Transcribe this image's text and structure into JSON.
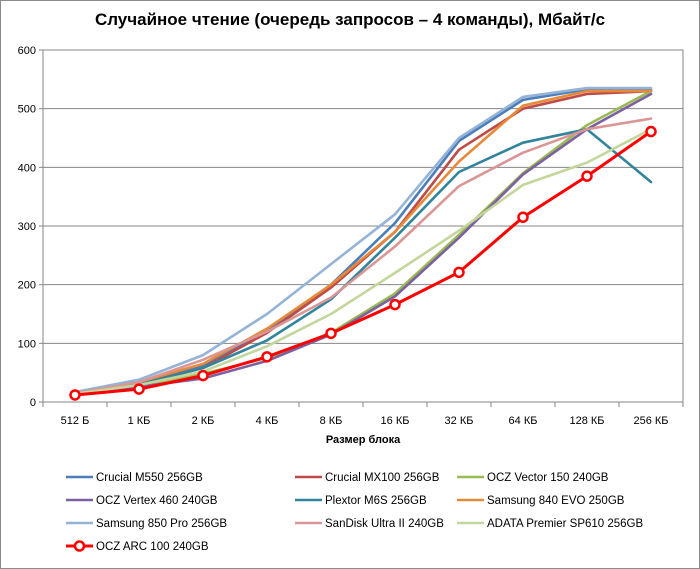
{
  "chart_data": {
    "type": "line",
    "title": "Случайное чтение (очередь запросов – 4 команды), Мбайт/с",
    "xlabel": "Размер блока",
    "ylabel": "",
    "ylim": [
      0,
      600
    ],
    "yticks": [
      0,
      100,
      200,
      300,
      400,
      500,
      600
    ],
    "grid": true,
    "legend": "bottom",
    "categories": [
      "512 Б",
      "1 КБ",
      "2 КБ",
      "4 КБ",
      "8 КБ",
      "16 КБ",
      "32 КБ",
      "64 КБ",
      "128 КБ",
      "256 КБ"
    ],
    "series": [
      {
        "name": "Crucial M550 256GB",
        "color": "#4a7ebb",
        "values": [
          16,
          33,
          62,
          120,
          200,
          305,
          445,
          515,
          533,
          533
        ]
      },
      {
        "name": "Crucial MX100 256GB",
        "color": "#be4b48",
        "values": [
          16,
          31,
          58,
          118,
          195,
          290,
          430,
          500,
          525,
          530
        ]
      },
      {
        "name": "OCZ Vector 150 240GB",
        "color": "#98b954",
        "values": [
          15,
          28,
          48,
          75,
          118,
          185,
          285,
          390,
          472,
          530
        ]
      },
      {
        "name": "OCZ Vertex 460 240GB",
        "color": "#7d60a0",
        "values": [
          14,
          26,
          40,
          70,
          115,
          180,
          280,
          388,
          465,
          525
        ]
      },
      {
        "name": "Plextor M6S 256GB",
        "color": "#31849b",
        "values": [
          15,
          30,
          58,
          105,
          175,
          280,
          392,
          442,
          465,
          375
        ]
      },
      {
        "name": "Samsung 840 EVO 250GB",
        "color": "#e68a3a",
        "values": [
          17,
          34,
          65,
          125,
          200,
          290,
          410,
          505,
          530,
          530
        ]
      },
      {
        "name": "Samsung 850 Pro 256GB",
        "color": "#95b3d7",
        "values": [
          17,
          38,
          80,
          150,
          235,
          320,
          450,
          520,
          535,
          535
        ]
      },
      {
        "name": "SanDisk Ultra II 240GB",
        "color": "#d99694",
        "values": [
          15,
          34,
          72,
          120,
          178,
          265,
          368,
          425,
          465,
          483
        ]
      },
      {
        "name": "ADATA Premier SP610 256GB",
        "color": "#c3d69b",
        "values": [
          14,
          29,
          52,
          95,
          150,
          220,
          292,
          370,
          408,
          465
        ]
      },
      {
        "name": "OCZ ARC 100 240GB",
        "color": "#ff0000",
        "values": [
          12,
          22,
          45,
          77,
          117,
          166,
          221,
          315,
          385,
          461
        ],
        "markers": true
      }
    ]
  }
}
